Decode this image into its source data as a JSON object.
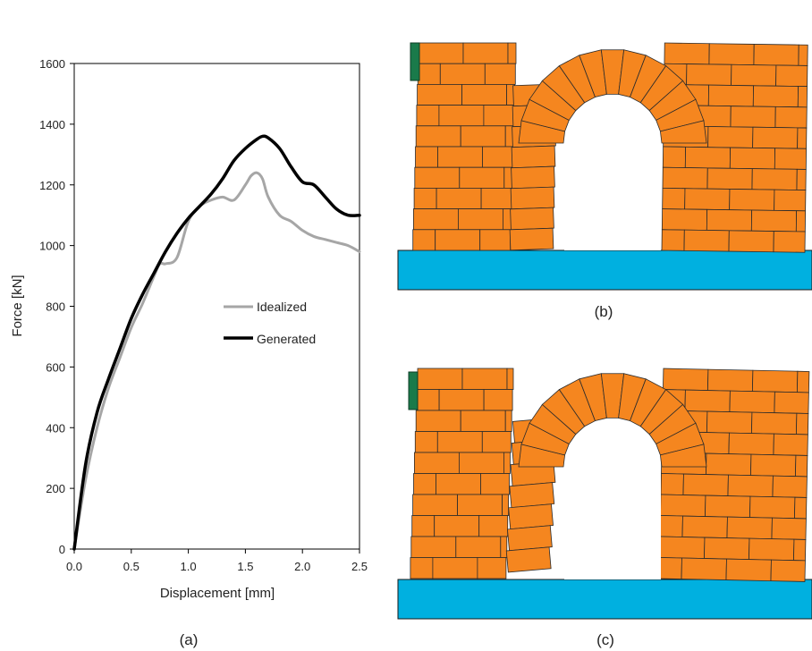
{
  "chart_data": {
    "type": "line",
    "title": "",
    "xlabel": "Displacement [mm]",
    "ylabel": "Force [kN]",
    "xlim": [
      0,
      2.5
    ],
    "ylim": [
      0,
      1600
    ],
    "xticks": [
      "0.0",
      "0.5",
      "1.0",
      "1.5",
      "2.0",
      "2.5"
    ],
    "yticks": [
      "0",
      "200",
      "400",
      "600",
      "800",
      "1000",
      "1200",
      "1400",
      "1600"
    ],
    "grid": false,
    "legend_position": "center-right",
    "series": [
      {
        "name": "Idealized",
        "color": "#a6a6a6",
        "x": [
          0,
          0.1,
          0.2,
          0.3,
          0.4,
          0.5,
          0.6,
          0.7,
          0.75,
          0.8,
          0.9,
          1.0,
          1.1,
          1.2,
          1.3,
          1.4,
          1.5,
          1.55,
          1.6,
          1.65,
          1.7,
          1.8,
          1.9,
          2.0,
          2.1,
          2.2,
          2.3,
          2.4,
          2.5
        ],
        "y": [
          0,
          230,
          400,
          530,
          630,
          730,
          810,
          900,
          940,
          940,
          960,
          1080,
          1130,
          1150,
          1160,
          1150,
          1200,
          1230,
          1240,
          1220,
          1160,
          1100,
          1080,
          1050,
          1030,
          1020,
          1010,
          1000,
          980
        ]
      },
      {
        "name": "Generated",
        "color": "#000000",
        "x": [
          0,
          0.1,
          0.2,
          0.3,
          0.4,
          0.5,
          0.6,
          0.7,
          0.8,
          0.9,
          1.0,
          1.1,
          1.2,
          1.3,
          1.4,
          1.5,
          1.6,
          1.65,
          1.7,
          1.8,
          1.9,
          2.0,
          2.1,
          2.2,
          2.3,
          2.4,
          2.5
        ],
        "y": [
          0,
          280,
          450,
          560,
          660,
          760,
          840,
          910,
          980,
          1040,
          1090,
          1130,
          1170,
          1220,
          1280,
          1320,
          1350,
          1360,
          1355,
          1320,
          1260,
          1210,
          1200,
          1160,
          1120,
          1100,
          1100
        ]
      }
    ]
  },
  "panels": {
    "a_label": "(a)",
    "b_label": "(b)",
    "c_label": "(c)"
  },
  "colors": {
    "brick": "#f5861f",
    "brick_edge": "#2b2b2b",
    "base": "#00b0e0",
    "support": "#1a7a4a"
  }
}
